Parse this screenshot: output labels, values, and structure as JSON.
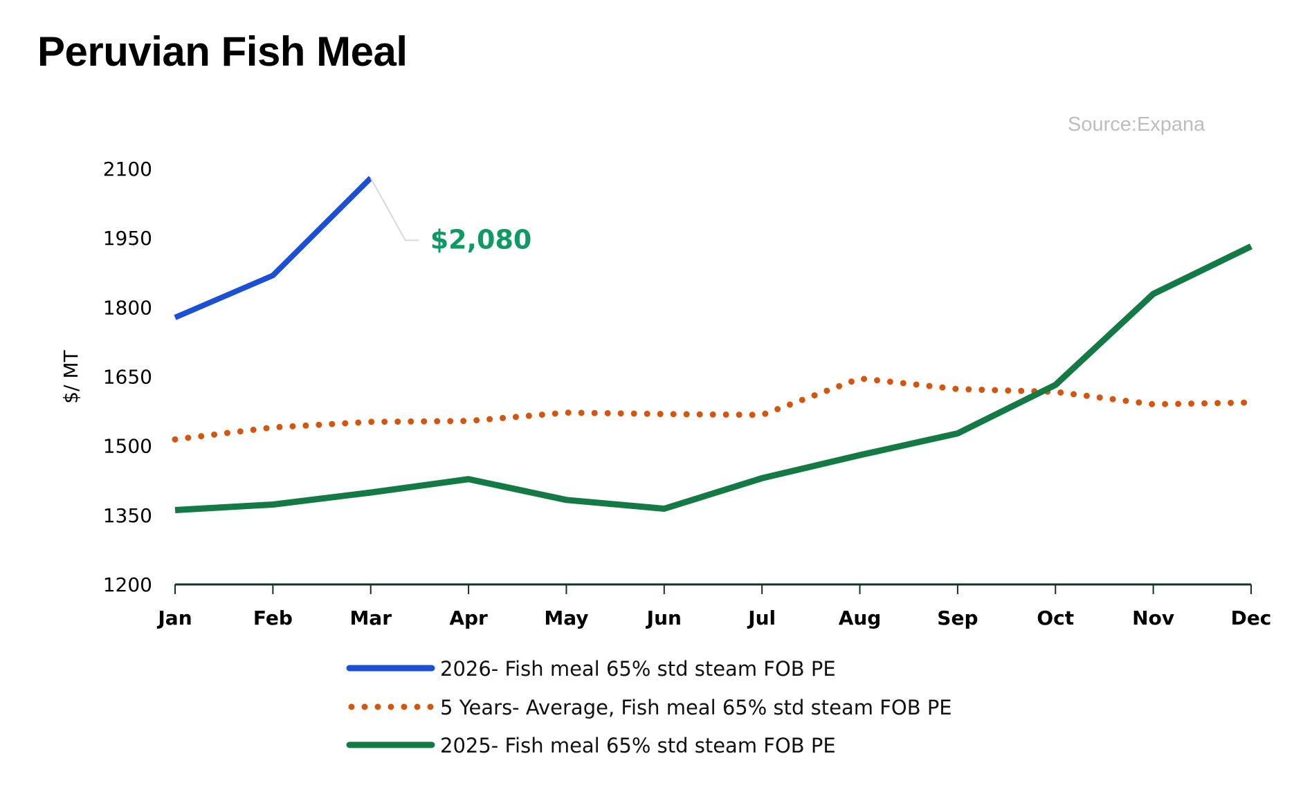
{
  "chart_data": {
    "type": "line",
    "title": "Peruvian Fish Meal",
    "source": "Source:Expana",
    "ylabel": "$/ MT",
    "xlabel": "",
    "ylim": [
      1200,
      2100
    ],
    "yticks": [
      "1200",
      "1350",
      "1500",
      "1650",
      "1800",
      "1950",
      "2100"
    ],
    "categories": [
      "Jan",
      "Feb",
      "Mar",
      "Apr",
      "May",
      "Jun",
      "Jul",
      "Aug",
      "Sep",
      "Oct",
      "Nov",
      "Dec"
    ],
    "series": [
      {
        "name": "2026- Fish meal 65% std steam FOB PE",
        "color": "#1a4fd6",
        "style": "solid",
        "values": [
          1778,
          1869,
          2080,
          null,
          null,
          null,
          null,
          null,
          null,
          null,
          null,
          null
        ]
      },
      {
        "name": "5 Years- Average, Fish meal 65% std steam FOB PE",
        "color": "#d4560e",
        "style": "dotted",
        "values": [
          1514,
          1540,
          1552,
          1554,
          1572,
          1569,
          1567,
          1646,
          1623,
          1617,
          1590,
          1594
        ]
      },
      {
        "name": "2025- Fish meal 65% std steam FOB PE",
        "color": "#137a45",
        "style": "solid",
        "values": [
          1361,
          1373,
          1399,
          1428,
          1383,
          1364,
          1430,
          1480,
          1527,
          1632,
          1829,
          1932
        ]
      }
    ],
    "annotation": {
      "text": "$2,080",
      "color": "#0e9a63",
      "series": 0,
      "category": "Mar"
    },
    "legend": "bottom",
    "grid": false
  }
}
